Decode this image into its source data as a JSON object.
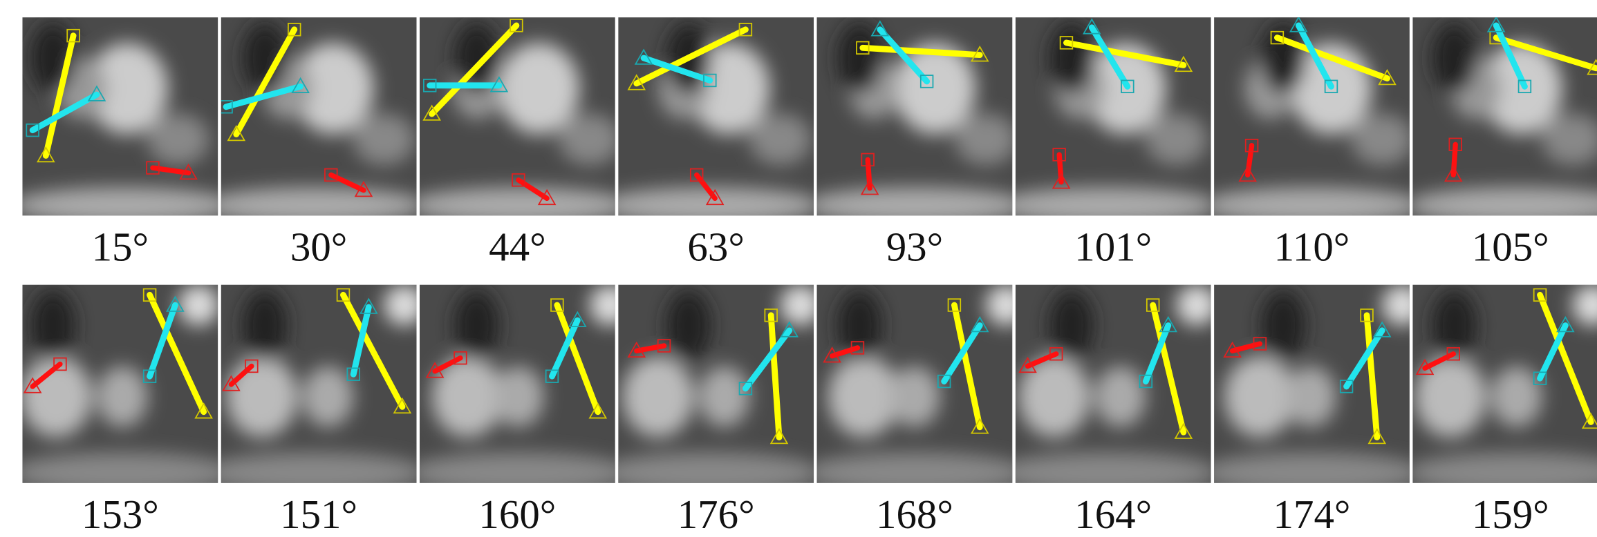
{
  "figure": {
    "rows": [
      [
        "15°",
        "30°",
        "44°",
        "63°",
        "93°",
        "101°",
        "110°",
        "105°"
      ],
      [
        "153°",
        "151°",
        "160°",
        "176°",
        "168°",
        "164°",
        "174°",
        "159°"
      ]
    ]
  }
}
